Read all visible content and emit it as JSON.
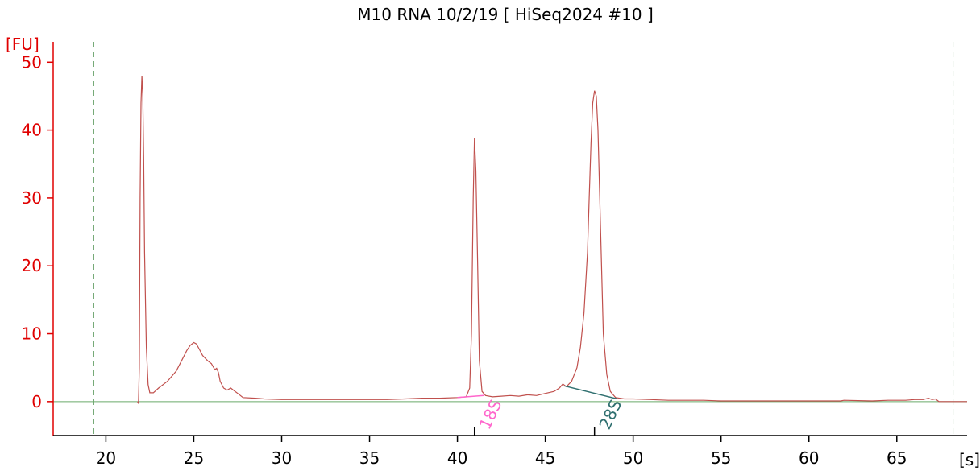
{
  "chart_data": {
    "type": "line",
    "title": "M10 RNA 10/2/19  [ HiSeq2024 #10 ]",
    "xlabel": "[s]",
    "ylabel": "[FU]",
    "xlim": [
      17,
      69
    ],
    "ylim": [
      -5,
      53
    ],
    "xticks": [
      20,
      25,
      30,
      35,
      40,
      45,
      50,
      55,
      60,
      65
    ],
    "yticks": [
      0,
      10,
      20,
      30,
      40,
      50
    ],
    "colors": {
      "trace": "#c0504d",
      "yaxis": "#e00000",
      "baseline": "#6aaa6a",
      "markers": "#2e7d32",
      "peak_18s": "#ff66cc",
      "peak_28s": "#2f6f6f"
    },
    "markers_x": [
      19.3,
      68.2
    ],
    "series": [
      {
        "points": [
          [
            21.8,
            0.0
          ],
          [
            21.85,
            -0.3
          ],
          [
            21.9,
            5.0
          ],
          [
            21.95,
            30.0
          ],
          [
            22.0,
            44.0
          ],
          [
            22.05,
            48.0
          ],
          [
            22.1,
            45.0
          ],
          [
            22.15,
            36.0
          ],
          [
            22.2,
            22.0
          ],
          [
            22.3,
            8.0
          ],
          [
            22.4,
            2.5
          ],
          [
            22.5,
            1.3
          ],
          [
            22.7,
            1.3
          ],
          [
            23.0,
            2.0
          ],
          [
            23.5,
            3.0
          ],
          [
            24.0,
            4.5
          ],
          [
            24.3,
            6.0
          ],
          [
            24.6,
            7.5
          ],
          [
            24.8,
            8.3
          ],
          [
            25.0,
            8.7
          ],
          [
            25.15,
            8.5
          ],
          [
            25.3,
            7.8
          ],
          [
            25.5,
            6.8
          ],
          [
            25.8,
            6.0
          ],
          [
            26.0,
            5.6
          ],
          [
            26.2,
            4.7
          ],
          [
            26.3,
            4.9
          ],
          [
            26.4,
            4.3
          ],
          [
            26.5,
            3.0
          ],
          [
            26.7,
            2.0
          ],
          [
            26.9,
            1.7
          ],
          [
            27.1,
            2.0
          ],
          [
            27.3,
            1.6
          ],
          [
            27.5,
            1.2
          ],
          [
            27.8,
            0.6
          ],
          [
            28.5,
            0.5
          ],
          [
            29.0,
            0.4
          ],
          [
            30.0,
            0.3
          ],
          [
            31.0,
            0.3
          ],
          [
            32.0,
            0.3
          ],
          [
            33.0,
            0.3
          ],
          [
            34.0,
            0.3
          ],
          [
            35.0,
            0.3
          ],
          [
            36.0,
            0.3
          ],
          [
            37.0,
            0.4
          ],
          [
            38.0,
            0.5
          ],
          [
            39.0,
            0.5
          ],
          [
            40.0,
            0.6
          ],
          [
            40.5,
            0.7
          ],
          [
            40.7,
            2.0
          ],
          [
            40.8,
            10.0
          ],
          [
            40.9,
            30.0
          ],
          [
            40.97,
            38.8
          ],
          [
            41.05,
            34.0
          ],
          [
            41.15,
            20.0
          ],
          [
            41.25,
            6.0
          ],
          [
            41.4,
            1.5
          ],
          [
            41.6,
            0.9
          ],
          [
            42.0,
            0.7
          ],
          [
            42.5,
            0.8
          ],
          [
            43.0,
            0.9
          ],
          [
            43.5,
            0.8
          ],
          [
            44.0,
            1.0
          ],
          [
            44.5,
            0.9
          ],
          [
            45.0,
            1.2
          ],
          [
            45.5,
            1.5
          ],
          [
            45.8,
            2.0
          ],
          [
            46.0,
            2.6
          ],
          [
            46.2,
            2.2
          ],
          [
            46.5,
            3.0
          ],
          [
            46.8,
            5.0
          ],
          [
            47.0,
            8.0
          ],
          [
            47.2,
            13.0
          ],
          [
            47.4,
            22.0
          ],
          [
            47.5,
            30.0
          ],
          [
            47.6,
            38.0
          ],
          [
            47.7,
            44.0
          ],
          [
            47.8,
            45.8
          ],
          [
            47.9,
            45.0
          ],
          [
            48.0,
            40.0
          ],
          [
            48.1,
            30.0
          ],
          [
            48.2,
            20.0
          ],
          [
            48.3,
            10.0
          ],
          [
            48.5,
            4.0
          ],
          [
            48.7,
            1.5
          ],
          [
            49.0,
            0.6
          ],
          [
            49.5,
            0.4
          ],
          [
            50.0,
            0.4
          ],
          [
            51.0,
            0.3
          ],
          [
            52.0,
            0.2
          ],
          [
            52.8,
            0.2
          ],
          [
            53.0,
            0.2
          ],
          [
            54.0,
            0.2
          ],
          [
            55.0,
            0.1
          ],
          [
            56.0,
            0.1
          ],
          [
            58.0,
            0.1
          ],
          [
            60.0,
            0.1
          ],
          [
            61.8,
            0.1
          ],
          [
            62.0,
            0.2
          ],
          [
            63.6,
            0.1
          ],
          [
            64.5,
            0.2
          ],
          [
            65.0,
            0.2
          ],
          [
            65.5,
            0.2
          ],
          [
            66.0,
            0.3
          ],
          [
            66.5,
            0.3
          ],
          [
            66.8,
            0.5
          ],
          [
            67.0,
            0.3
          ],
          [
            67.2,
            0.4
          ],
          [
            67.4,
            0.0
          ],
          [
            69.0,
            0.0
          ]
        ]
      }
    ],
    "peaks": [
      {
        "label": "18S",
        "x": 40.97,
        "baseline_from": [
          40.0,
          0.6
        ],
        "baseline_to": [
          41.5,
          0.9
        ]
      },
      {
        "label": "28S",
        "x": 47.8,
        "baseline_from": [
          46.1,
          2.3
        ],
        "baseline_to": [
          49.1,
          0.4
        ]
      }
    ]
  }
}
